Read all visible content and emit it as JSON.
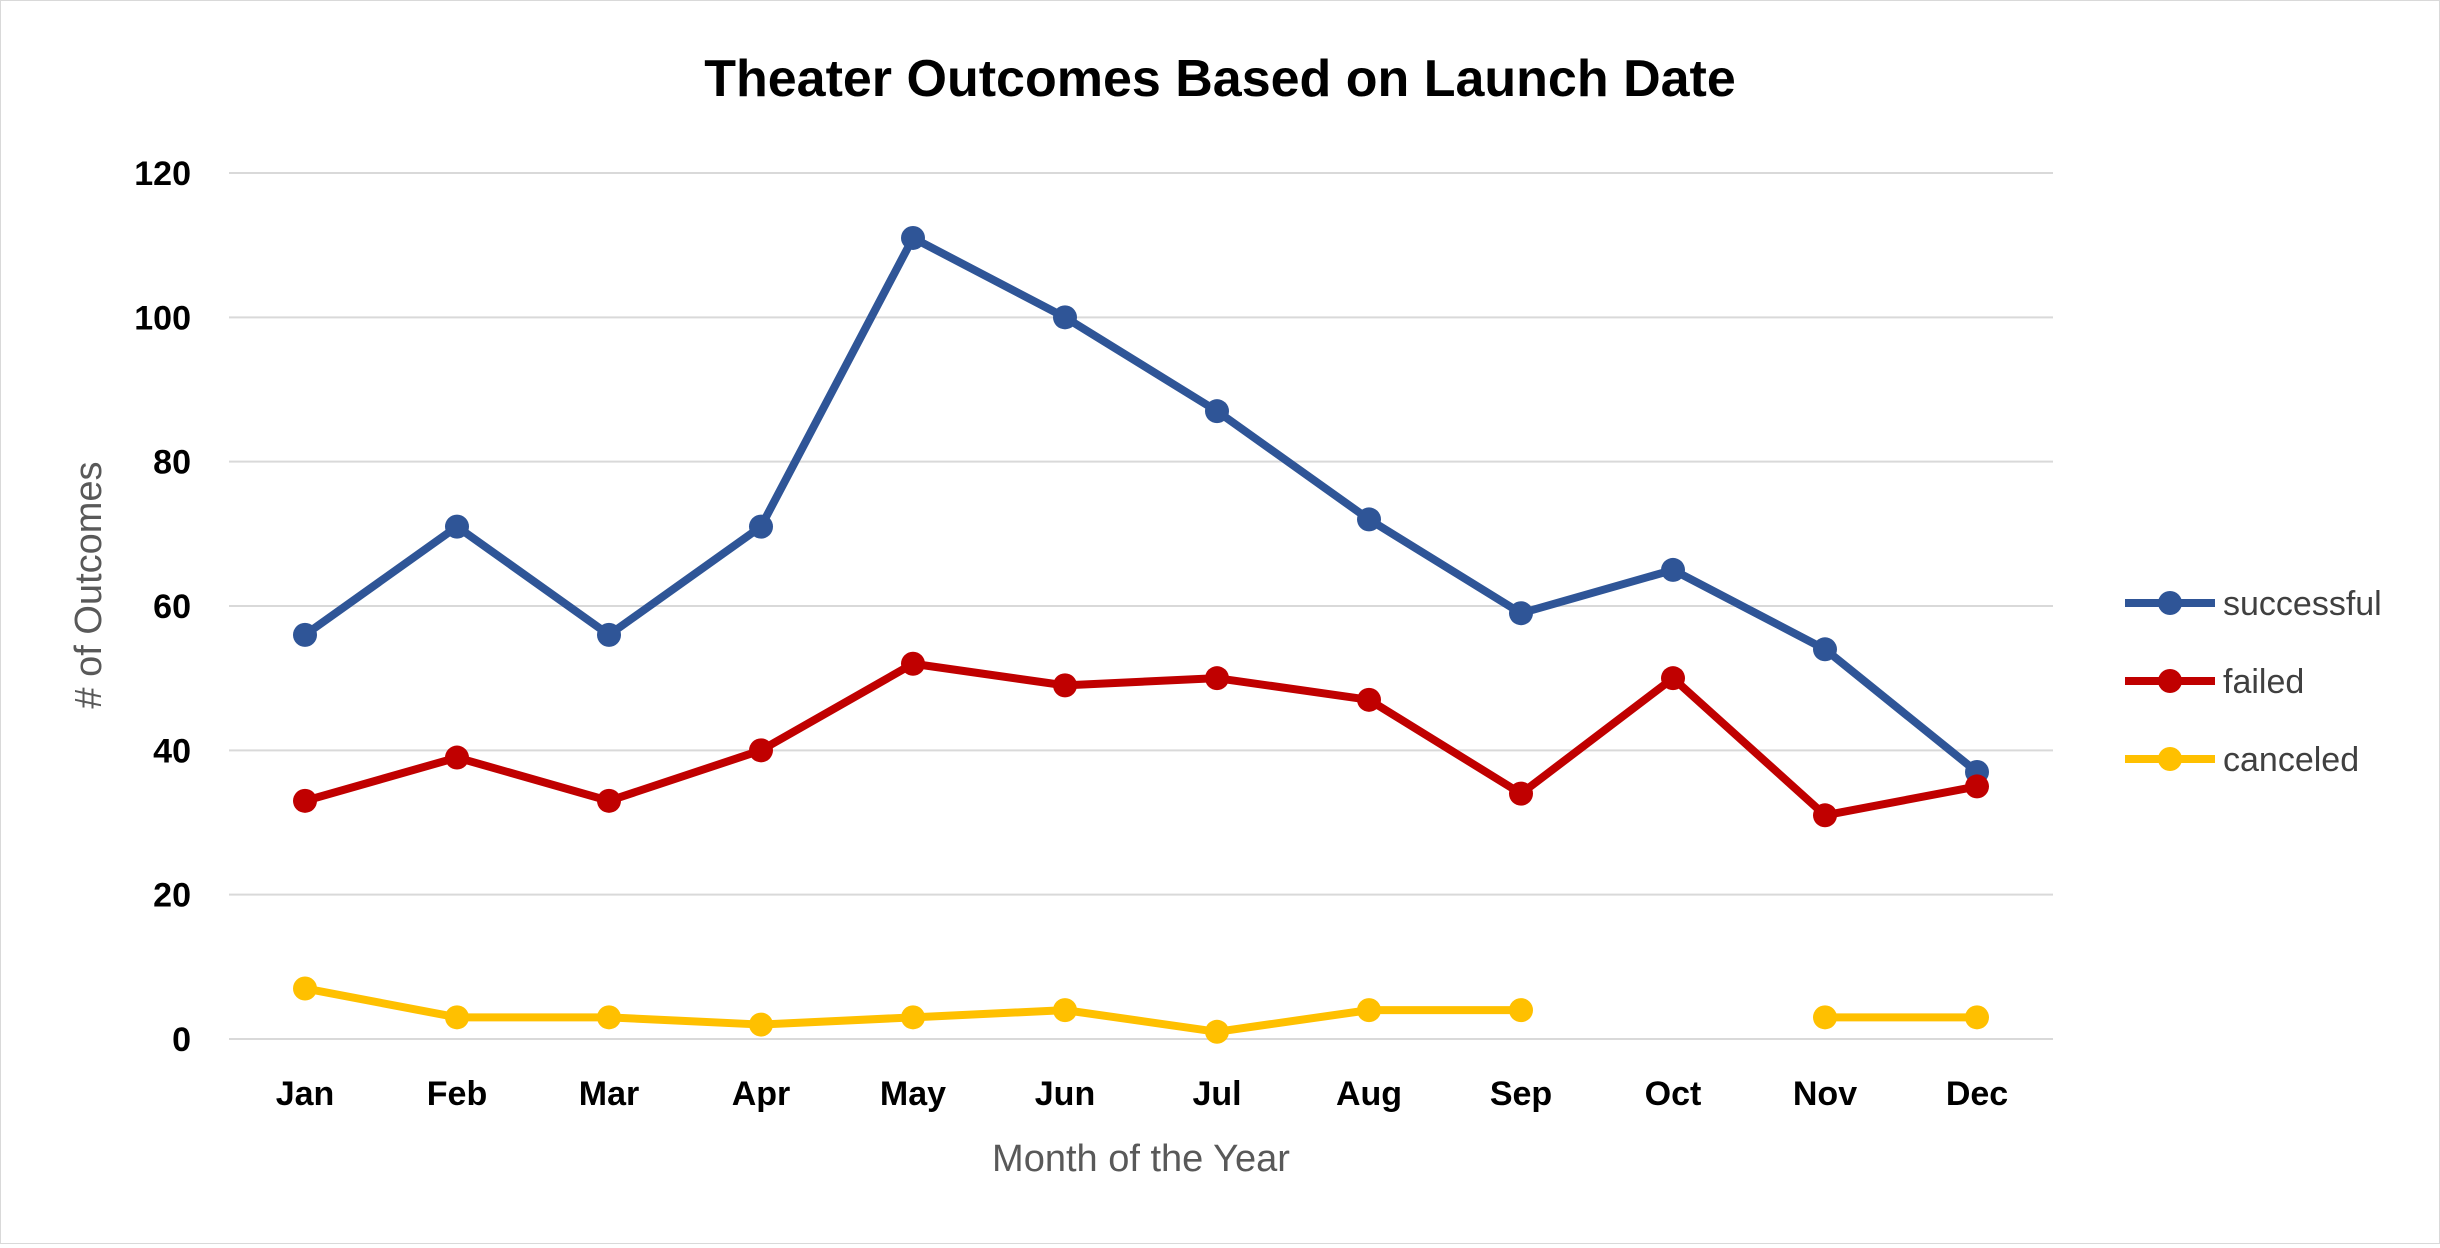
{
  "chart_data": {
    "type": "line",
    "title": "Theater Outcomes Based on Launch Date",
    "xlabel": "Month of the Year",
    "ylabel": "# of Outcomes",
    "ylim": [
      0,
      120
    ],
    "y_ticks": [
      "0",
      "20",
      "40",
      "60",
      "80",
      "100",
      "120"
    ],
    "grid": true,
    "legend_position": "right",
    "categories": [
      "Jan",
      "Feb",
      "Mar",
      "Apr",
      "May",
      "Jun",
      "Jul",
      "Aug",
      "Sep",
      "Oct",
      "Nov",
      "Dec"
    ],
    "series": [
      {
        "name": "successful",
        "color": "#2f5597",
        "values": [
          56,
          71,
          56,
          71,
          111,
          100,
          87,
          72,
          59,
          65,
          54,
          37
        ]
      },
      {
        "name": "failed",
        "color": "#c00000",
        "values": [
          33,
          39,
          33,
          40,
          52,
          49,
          50,
          47,
          34,
          50,
          31,
          35
        ]
      },
      {
        "name": "canceled",
        "color": "#ffc000",
        "values": [
          7,
          3,
          3,
          2,
          3,
          4,
          1,
          4,
          4,
          null,
          3,
          3
        ]
      }
    ]
  }
}
